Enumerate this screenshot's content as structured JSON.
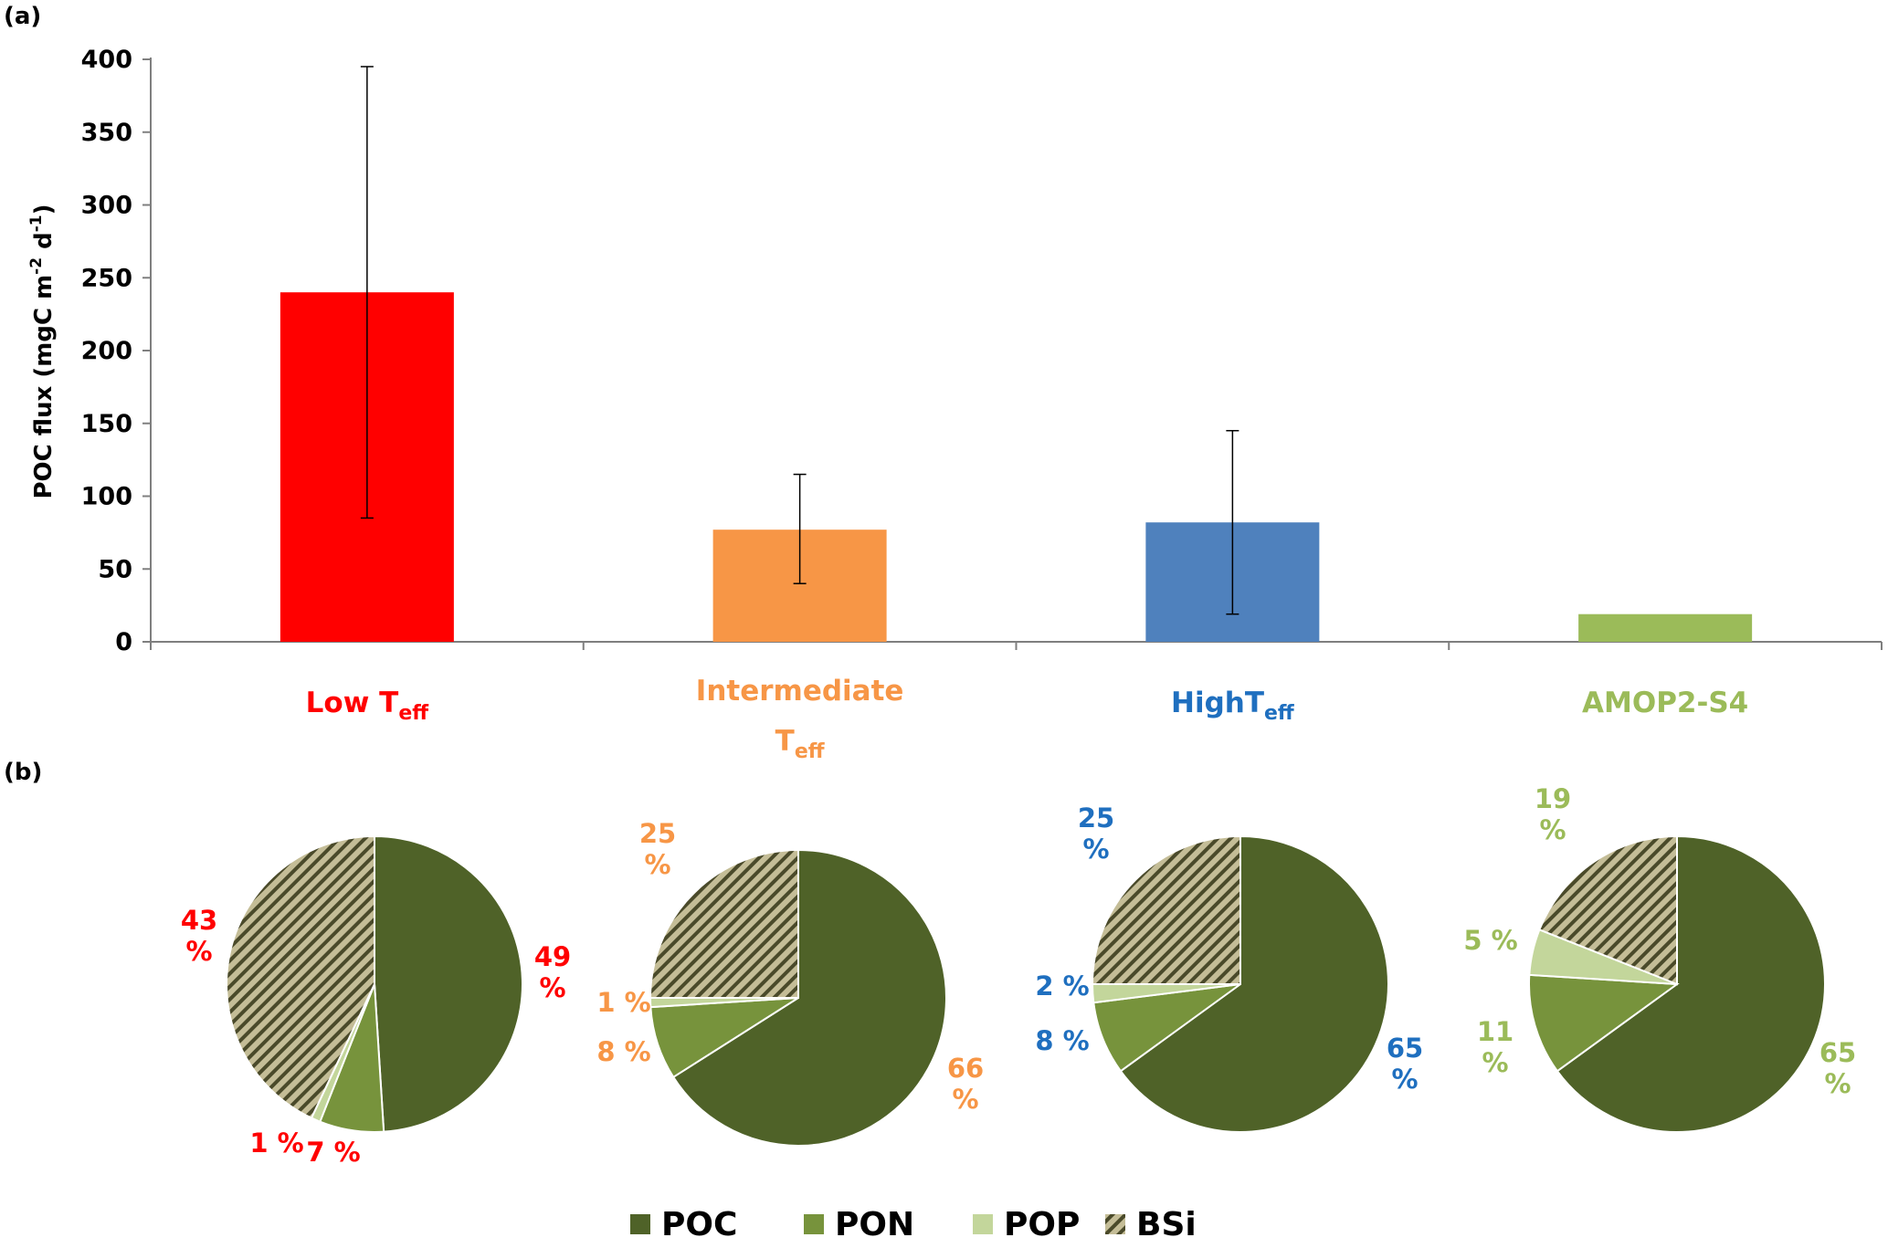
{
  "panel_labels": {
    "a": "(a)",
    "b": "(b)"
  },
  "chart_data": [
    {
      "type": "bar",
      "panel": "(a)",
      "ylabel": "POC flux (mgC m-2 d-1)",
      "ylabel_parts": {
        "main": "POC flux (mgC m",
        "sup1": "-2",
        "mid": " d",
        "sup2": "-1",
        "end": ")"
      },
      "ylim": [
        0,
        400
      ],
      "yticks": [
        "0",
        "50",
        "100",
        "150",
        "200",
        "250",
        "300",
        "350",
        "400"
      ],
      "ytick_values": [
        0,
        50,
        100,
        150,
        200,
        250,
        300,
        350,
        400
      ],
      "grid": false,
      "categories": [
        {
          "main": "Low T",
          "sub": "eff",
          "color": "#ff0000"
        },
        {
          "line1": "Intermediate",
          "main": "T",
          "sub": "eff",
          "color": "#f79646"
        },
        {
          "main": "HighT",
          "sub": "eff",
          "color": "#1f6fbf"
        },
        {
          "main": "AMOP2-S4",
          "sub": "",
          "color": "#9bbb59"
        }
      ],
      "values": [
        240,
        77,
        82,
        19
      ],
      "error_low": [
        85,
        40,
        19,
        null
      ],
      "error_high": [
        395,
        115,
        145,
        null
      ],
      "bar_colors": [
        "#ff0000",
        "#f79646",
        "#4f81bd",
        "#9bbb59"
      ]
    },
    {
      "type": "pie",
      "panel": "(b)",
      "legend": [
        {
          "name": "POC",
          "color": "#4f6228",
          "pattern": false
        },
        {
          "name": "PON",
          "color": "#77933c",
          "pattern": false
        },
        {
          "name": "POP",
          "color": "#c3d69b",
          "pattern": false
        },
        {
          "name": "BSi",
          "color": "#c4bd97",
          "pattern": true
        }
      ],
      "legend_position": "bottom",
      "pies": [
        {
          "label_color": "#ff0000",
          "slices": [
            {
              "name": "POC",
              "value": 49,
              "label": "49 %"
            },
            {
              "name": "PON",
              "value": 7,
              "label": "7 %"
            },
            {
              "name": "POP",
              "value": 1,
              "label": "1 %"
            },
            {
              "name": "BSi",
              "value": 43,
              "label": "43 %"
            }
          ]
        },
        {
          "label_color": "#f79646",
          "slices": [
            {
              "name": "POC",
              "value": 66,
              "label": "66 %"
            },
            {
              "name": "PON",
              "value": 8,
              "label": "8 %"
            },
            {
              "name": "POP",
              "value": 1,
              "label": "1 %"
            },
            {
              "name": "BSi",
              "value": 25,
              "label": "25 %"
            }
          ]
        },
        {
          "label_color": "#1f6fbf",
          "slices": [
            {
              "name": "POC",
              "value": 65,
              "label": "65 %"
            },
            {
              "name": "PON",
              "value": 8,
              "label": "8 %"
            },
            {
              "name": "POP",
              "value": 2,
              "label": "2 %"
            },
            {
              "name": "BSi",
              "value": 25,
              "label": "25 %"
            }
          ]
        },
        {
          "label_color": "#9bbb59",
          "slices": [
            {
              "name": "POC",
              "value": 65,
              "label": "65 %"
            },
            {
              "name": "PON",
              "value": 11,
              "label": "11 %"
            },
            {
              "name": "POP",
              "value": 5,
              "label": "5 %"
            },
            {
              "name": "BSi",
              "value": 19,
              "label": "19 %"
            }
          ]
        }
      ]
    }
  ]
}
